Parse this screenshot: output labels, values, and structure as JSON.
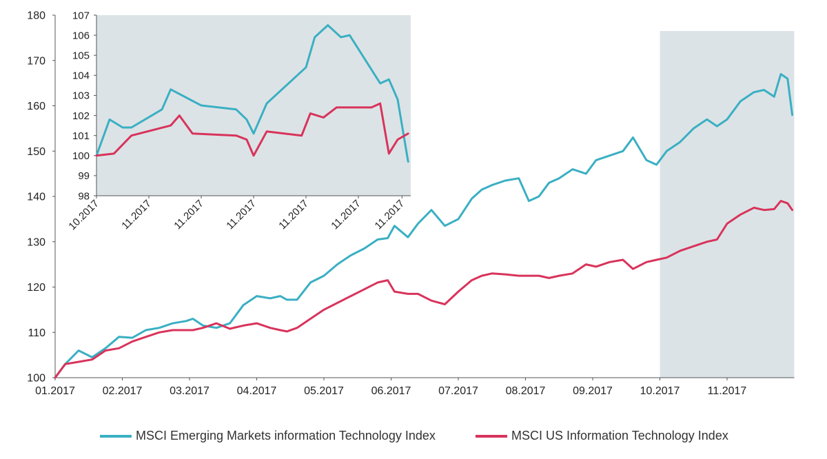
{
  "chart_data": [
    {
      "type": "line",
      "title": "",
      "xlabel": "",
      "ylabel": "",
      "ylim": [
        100,
        180
      ],
      "yticks": [
        100,
        110,
        120,
        130,
        140,
        150,
        160,
        170,
        180
      ],
      "x_range": [
        0,
        11
      ],
      "xticks": [
        {
          "x": 0,
          "label": "01.2017"
        },
        {
          "x": 1,
          "label": "02.2017"
        },
        {
          "x": 2,
          "label": "03.2017"
        },
        {
          "x": 3,
          "label": "04.2017"
        },
        {
          "x": 4,
          "label": "05.2017"
        },
        {
          "x": 5,
          "label": "06.2017"
        },
        {
          "x": 6,
          "label": "07.2017"
        },
        {
          "x": 7,
          "label": "08.2017"
        },
        {
          "x": 8,
          "label": "09.2017"
        },
        {
          "x": 9,
          "label": "10.2017"
        },
        {
          "x": 10,
          "label": "11.2017"
        }
      ],
      "highlight_x_range": [
        9,
        11
      ],
      "grid": false,
      "series": [
        {
          "name": "MSCI Emerging Markets information Technology Index",
          "color": "#3AAFC3",
          "x": [
            0,
            0.15,
            0.35,
            0.55,
            0.75,
            0.95,
            1.15,
            1.35,
            1.55,
            1.75,
            1.95,
            2.05,
            2.2,
            2.4,
            2.6,
            2.8,
            3.0,
            3.2,
            3.35,
            3.45,
            3.6,
            3.8,
            4.0,
            4.2,
            4.4,
            4.6,
            4.8,
            4.95,
            5.05,
            5.25,
            5.4,
            5.6,
            5.8,
            6.0,
            6.2,
            6.35,
            6.5,
            6.7,
            6.9,
            7.05,
            7.2,
            7.35,
            7.5,
            7.7,
            7.9,
            8.05,
            8.25,
            8.45,
            8.6,
            8.8,
            8.95,
            9.1,
            9.3,
            9.5,
            9.7,
            9.85,
            10.0,
            10.2,
            10.4,
            10.55,
            10.7,
            10.8,
            10.9,
            10.97
          ],
          "values": [
            100,
            103,
            106,
            104.5,
            106.5,
            109,
            108.8,
            110.5,
            111,
            112,
            112.5,
            113,
            111.5,
            111,
            112,
            116,
            118,
            117.5,
            118,
            117.2,
            117.2,
            121,
            122.5,
            125,
            127,
            128.5,
            130.5,
            130.8,
            133.5,
            131,
            134,
            137,
            133.5,
            135,
            139.5,
            141.5,
            142.5,
            143.5,
            144,
            139,
            140,
            143,
            144,
            146,
            145,
            148,
            149,
            150,
            153,
            148,
            147,
            150,
            152,
            155,
            157,
            155.5,
            157,
            161,
            163,
            163.5,
            162,
            167,
            166,
            158
          ]
        },
        {
          "name": "MSCI US Information Technology Index",
          "color": "#D8335B",
          "x": [
            0,
            0.15,
            0.35,
            0.55,
            0.75,
            0.95,
            1.15,
            1.35,
            1.55,
            1.75,
            1.95,
            2.05,
            2.2,
            2.4,
            2.6,
            2.8,
            3.0,
            3.2,
            3.35,
            3.45,
            3.6,
            3.8,
            4.0,
            4.2,
            4.4,
            4.6,
            4.8,
            4.95,
            5.05,
            5.25,
            5.4,
            5.6,
            5.8,
            6.0,
            6.2,
            6.35,
            6.5,
            6.7,
            6.9,
            7.05,
            7.2,
            7.35,
            7.5,
            7.7,
            7.9,
            8.05,
            8.25,
            8.45,
            8.6,
            8.8,
            8.95,
            9.1,
            9.3,
            9.5,
            9.7,
            9.85,
            10.0,
            10.2,
            10.4,
            10.55,
            10.7,
            10.8,
            10.9,
            10.97
          ],
          "values": [
            100,
            103,
            103.5,
            104,
            106,
            106.5,
            108,
            109,
            110,
            110.5,
            110.5,
            110.5,
            111,
            112,
            110.8,
            111.5,
            112,
            111,
            110.5,
            110.2,
            111,
            113,
            115,
            116.5,
            118,
            119.5,
            121,
            121.5,
            119,
            118.5,
            118.5,
            117,
            116.2,
            119,
            121.5,
            122.5,
            123,
            122.8,
            122.5,
            122.5,
            122.5,
            122,
            122.5,
            123,
            125,
            124.5,
            125.5,
            126,
            124,
            125.5,
            126,
            126.5,
            128,
            129,
            130,
            130.5,
            134,
            136,
            137.5,
            137,
            137.2,
            139,
            138.5,
            137
          ]
        }
      ]
    },
    {
      "type": "line",
      "title": "",
      "inset": true,
      "ylim": [
        98,
        107
      ],
      "yticks": [
        98,
        99,
        100,
        101,
        102,
        103,
        104,
        105,
        106,
        107
      ],
      "x_range": [
        0,
        36
      ],
      "xticks": [
        {
          "x": 0,
          "label": "10.2017"
        },
        {
          "x": 6,
          "label": "11.2017"
        },
        {
          "x": 12,
          "label": "11.2017"
        },
        {
          "x": 18,
          "label": "11.2017"
        },
        {
          "x": 24,
          "label": "11.2017"
        },
        {
          "x": 30,
          "label": "11.2017"
        },
        {
          "x": 35,
          "label": "11.2017"
        }
      ],
      "grid": false,
      "series": [
        {
          "name": "MSCI Emerging Markets information Technology Index",
          "color": "#3AAFC3",
          "x": [
            0,
            1.5,
            3,
            4,
            7.5,
            8.5,
            12,
            16,
            17.2,
            18,
            19.5,
            24,
            25,
            26.5,
            28,
            29,
            32.5,
            33.5,
            34.5,
            35.7
          ],
          "values": [
            100,
            101.8,
            101.4,
            101.4,
            102.3,
            103.3,
            102.5,
            102.3,
            101.8,
            101.1,
            102.6,
            104.4,
            105.9,
            106.5,
            105.9,
            106,
            103.6,
            103.8,
            102.8,
            99.7
          ],
          "labels": []
        },
        {
          "name": "MSCI US Information Technology Index",
          "color": "#D8335B",
          "x": [
            0,
            2,
            4,
            8.5,
            9.5,
            11,
            16,
            17.2,
            18,
            19.5,
            23.5,
            24.5,
            26,
            27.5,
            31.5,
            32.5,
            33.5,
            34.5,
            35.7
          ],
          "values": [
            100,
            100.1,
            101,
            101.5,
            102,
            101.1,
            101,
            100.8,
            100,
            101.2,
            101,
            102.1,
            101.9,
            102.4,
            102.4,
            102.6,
            100.1,
            100.8,
            101.1
          ],
          "labels": []
        }
      ]
    }
  ],
  "legend": {
    "items": [
      {
        "label": "MSCI Emerging Markets information Technology Index",
        "color": "#3AAFC3"
      },
      {
        "label": "MSCI US Information Technology Index",
        "color": "#D8335B"
      }
    ]
  },
  "colors": {
    "highlight": "#DCE3E6",
    "axis": "#555555"
  }
}
